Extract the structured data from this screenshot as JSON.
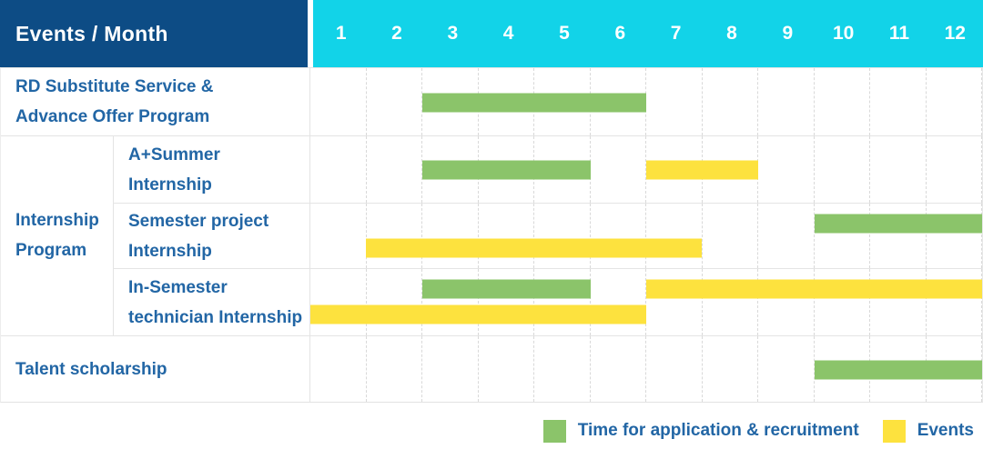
{
  "header": {
    "title": "Events / Month",
    "months": [
      "1",
      "2",
      "3",
      "4",
      "5",
      "6",
      "7",
      "8",
      "9",
      "10",
      "11",
      "12"
    ]
  },
  "colors": {
    "header_navy": "#0d4c85",
    "header_cyan": "#12d3e8",
    "application_green": "#8bc46a",
    "events_yellow": "#fde23e",
    "label_blue": "#2266a5"
  },
  "legend": {
    "items": [
      {
        "kind": "application",
        "label": "Time for application & recruitment",
        "color": "#8bc46a"
      },
      {
        "kind": "events",
        "label": "Events",
        "color": "#fde23e"
      }
    ]
  },
  "chart_data": {
    "type": "bar",
    "subtype": "gantt-schedule",
    "title": "Events / Month",
    "x_categories": [
      "1",
      "2",
      "3",
      "4",
      "5",
      "6",
      "7",
      "8",
      "9",
      "10",
      "11",
      "12"
    ],
    "x_range": [
      1,
      12
    ],
    "grid": "dashed-vertical",
    "legend_position": "bottom-right",
    "legend": [
      "Time for application & recruitment",
      "Events"
    ],
    "group_label": "Internship Program",
    "rows": [
      {
        "group": "",
        "label": "RD Substitute Service & Advance Offer Program",
        "label_lines": [
          "RD Substitute Service &",
          "Advance Offer Program"
        ],
        "bars": [
          {
            "type": "application",
            "start_month": 3,
            "end_month": 6,
            "lane": "center"
          }
        ]
      },
      {
        "group": "Internship Program",
        "label": "A+Summer Internship",
        "label_lines": [
          "A+Summer",
          "Internship"
        ],
        "bars": [
          {
            "type": "application",
            "start_month": 3,
            "end_month": 5,
            "lane": "center"
          },
          {
            "type": "events",
            "start_month": 7,
            "end_month": 8,
            "lane": "center"
          }
        ]
      },
      {
        "group": "Internship Program",
        "label": "Semester project Internship",
        "label_lines": [
          "Semester project",
          "Internship"
        ],
        "bars": [
          {
            "type": "application",
            "start_month": 10,
            "end_month": 12,
            "lane": "top"
          },
          {
            "type": "events",
            "start_month": 2,
            "end_month": 7,
            "lane": "bottom"
          }
        ]
      },
      {
        "group": "Internship Program",
        "label": "In-Semester technician Internship",
        "label_lines": [
          "In-Semester",
          "technician Internship"
        ],
        "bars": [
          {
            "type": "application",
            "start_month": 3,
            "end_month": 5,
            "lane": "top"
          },
          {
            "type": "events",
            "start_month": 7,
            "end_month": 12,
            "lane": "top"
          },
          {
            "type": "events",
            "start_month": 1,
            "end_month": 6,
            "lane": "bottom"
          }
        ]
      },
      {
        "group": "",
        "label": "Talent scholarship",
        "label_lines": [
          "Talent scholarship"
        ],
        "bars": [
          {
            "type": "application",
            "start_month": 10,
            "end_month": 12,
            "lane": "center"
          }
        ]
      }
    ]
  }
}
